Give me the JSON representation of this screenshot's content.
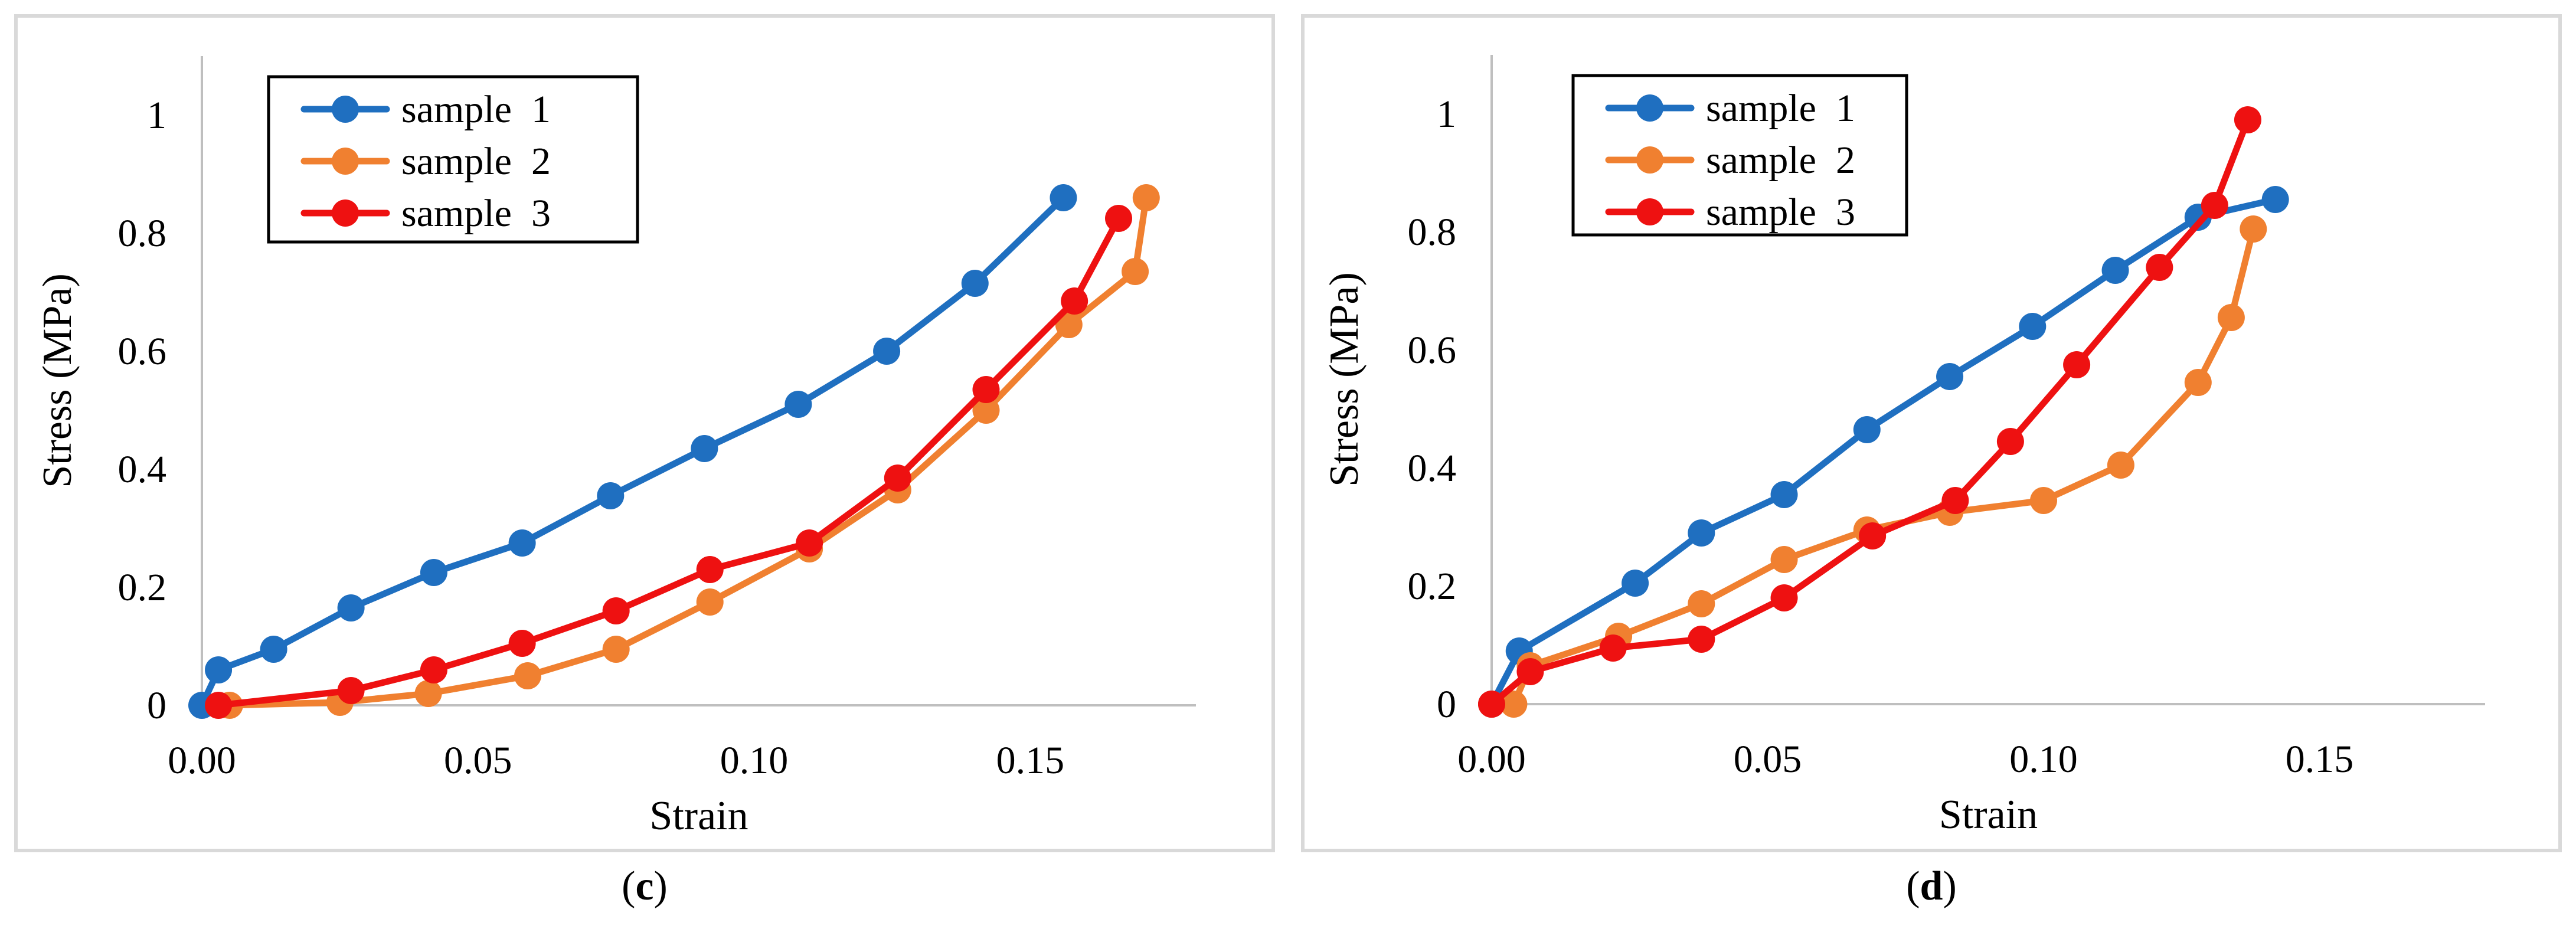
{
  "chart_data": [
    {
      "type": "line",
      "panel": "c",
      "xlabel": "Strain",
      "ylabel": "Stress (MPa)",
      "xlim": [
        0,
        0.18
      ],
      "ylim": [
        0,
        1.1
      ],
      "xticks": [
        "0.00",
        "0.05",
        "0.10",
        "0.15"
      ],
      "yticks": [
        "0",
        "0.2",
        "0.4",
        "0.6",
        "0.8",
        "1"
      ],
      "legend_position": "top-left",
      "series": [
        {
          "name": "sample  1",
          "color": "#1f6fc0",
          "x": [
            0.0,
            0.003,
            0.013,
            0.027,
            0.042,
            0.058,
            0.074,
            0.091,
            0.108,
            0.124,
            0.14,
            0.156
          ],
          "y": [
            0.0,
            0.06,
            0.095,
            0.165,
            0.225,
            0.275,
            0.355,
            0.435,
            0.51,
            0.6,
            0.715,
            0.86
          ]
        },
        {
          "name": "sample  2",
          "color": "#f08030",
          "x": [
            0.005,
            0.025,
            0.041,
            0.059,
            0.075,
            0.092,
            0.11,
            0.126,
            0.142,
            0.157,
            0.169,
            0.171
          ],
          "y": [
            0.0,
            0.005,
            0.02,
            0.05,
            0.095,
            0.175,
            0.265,
            0.365,
            0.5,
            0.645,
            0.735,
            0.86
          ]
        },
        {
          "name": "sample  3",
          "color": "#ee1111",
          "x": [
            0.003,
            0.027,
            0.042,
            0.058,
            0.075,
            0.092,
            0.11,
            0.126,
            0.142,
            0.158,
            0.166
          ],
          "y": [
            0.0,
            0.025,
            0.06,
            0.105,
            0.16,
            0.23,
            0.275,
            0.385,
            0.535,
            0.685,
            0.825
          ]
        }
      ]
    },
    {
      "type": "line",
      "panel": "d",
      "xlabel": "Strain",
      "ylabel": "Stress (MPa)",
      "xlim": [
        0,
        0.18
      ],
      "ylim": [
        0,
        1.1
      ],
      "xticks": [
        "0.00",
        "0.05",
        "0.10",
        "0.15"
      ],
      "yticks": [
        "0",
        "0.2",
        "0.4",
        "0.6",
        "0.8",
        "1"
      ],
      "legend_position": "top-left",
      "series": [
        {
          "name": "sample  1",
          "color": "#1f6fc0",
          "x": [
            0.0,
            0.005,
            0.026,
            0.038,
            0.053,
            0.068,
            0.083,
            0.098,
            0.113,
            0.128,
            0.142
          ],
          "y": [
            0.0,
            0.09,
            0.205,
            0.29,
            0.355,
            0.465,
            0.555,
            0.64,
            0.735,
            0.825,
            0.855
          ]
        },
        {
          "name": "sample  2",
          "color": "#f08030",
          "x": [
            0.0,
            0.004,
            0.007,
            0.023,
            0.038,
            0.053,
            0.068,
            0.083,
            0.1,
            0.114,
            0.128,
            0.134,
            0.138
          ],
          "y": [
            0.0,
            0.0,
            0.065,
            0.115,
            0.17,
            0.245,
            0.295,
            0.325,
            0.345,
            0.405,
            0.545,
            0.655,
            0.805
          ]
        },
        {
          "name": "sample  3",
          "color": "#ee1111",
          "x": [
            0.0,
            0.007,
            0.022,
            0.038,
            0.053,
            0.069,
            0.084,
            0.094,
            0.106,
            0.121,
            0.131,
            0.137
          ],
          "y": [
            0.0,
            0.055,
            0.095,
            0.11,
            0.18,
            0.285,
            0.345,
            0.445,
            0.575,
            0.74,
            0.845,
            0.99
          ]
        }
      ]
    }
  ],
  "captions": {
    "c": {
      "open": "(",
      "letter": "c",
      "close": ")"
    },
    "d": {
      "open": "(",
      "letter": "d",
      "close": ")"
    }
  }
}
